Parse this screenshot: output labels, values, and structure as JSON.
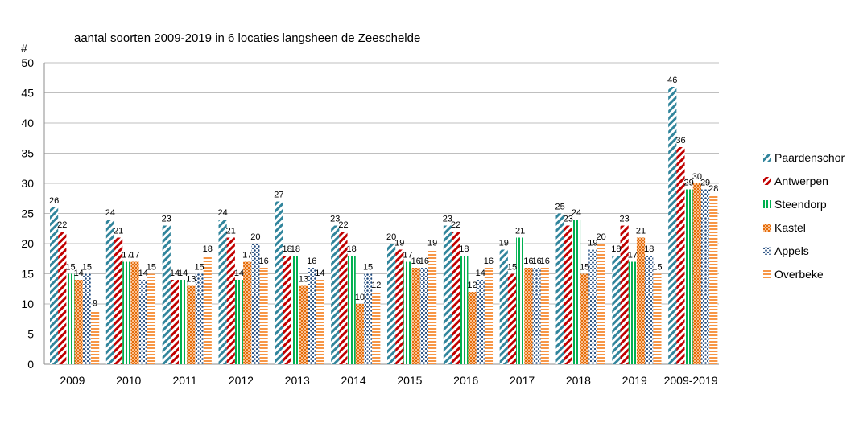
{
  "chart_data": {
    "type": "bar",
    "title": "aantal soorten 2009-2019 in 6 locaties langsheen de Zeeschelde",
    "ylabel": "#",
    "xlabel": "",
    "ylim": [
      0,
      50
    ],
    "yticks": [
      0,
      5,
      10,
      15,
      20,
      25,
      30,
      35,
      40,
      45,
      50
    ],
    "grid": "horizontal",
    "legend_position": "right",
    "categories": [
      "2009",
      "2010",
      "2011",
      "2012",
      "2013",
      "2014",
      "2015",
      "2016",
      "2017",
      "2018",
      "2019",
      "2009-2019"
    ],
    "series": [
      {
        "name": "Paardenschor",
        "color": "#31859C",
        "pattern": "diagonal-stripes",
        "values": [
          26,
          24,
          23,
          24,
          27,
          23,
          20,
          23,
          19,
          25,
          18,
          46
        ]
      },
      {
        "name": "Antwerpen",
        "color": "#C00000",
        "pattern": "diagonal-stripes",
        "values": [
          22,
          21,
          14,
          21,
          18,
          22,
          19,
          22,
          15,
          23,
          23,
          36
        ]
      },
      {
        "name": "Steendorp",
        "color": "#00B050",
        "pattern": "vertical-stripes",
        "values": [
          15,
          17,
          14,
          14,
          18,
          18,
          17,
          18,
          21,
          24,
          17,
          29
        ]
      },
      {
        "name": "Kastel",
        "color": "#F79646",
        "pattern": "checker",
        "values": [
          14,
          17,
          13,
          17,
          13,
          10,
          16,
          12,
          16,
          15,
          21,
          30
        ]
      },
      {
        "name": "Appels",
        "color": "#1F497D",
        "pattern": "dots",
        "values": [
          15,
          14,
          15,
          20,
          16,
          15,
          16,
          14,
          16,
          19,
          18,
          29
        ]
      },
      {
        "name": "Overbeke",
        "color": "#F79646",
        "pattern": "horizontal-stripes",
        "values": [
          9,
          15,
          18,
          16,
          14,
          12,
          19,
          16,
          16,
          20,
          15,
          28
        ]
      }
    ]
  }
}
